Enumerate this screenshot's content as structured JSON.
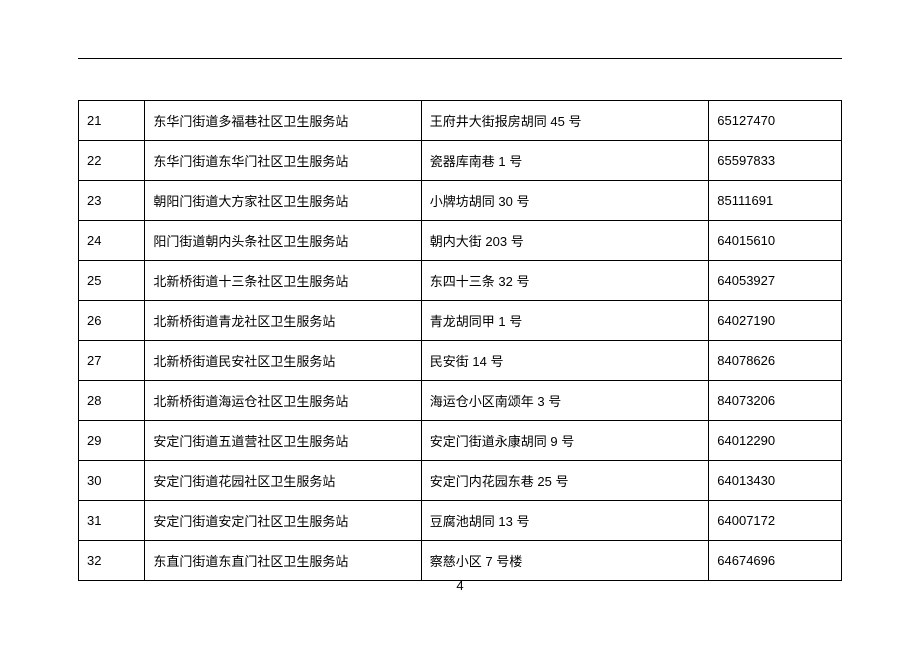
{
  "page_number": "4",
  "table": {
    "columns": [
      {
        "class": "col-num"
      },
      {
        "class": "col-name"
      },
      {
        "class": "col-addr"
      },
      {
        "class": "col-phone"
      }
    ],
    "rows": [
      [
        "21",
        "东华门街道多福巷社区卫生服务站",
        "王府井大街报房胡同 45 号",
        "65127470"
      ],
      [
        "22",
        "东华门街道东华门社区卫生服务站",
        "瓷器库南巷 1 号",
        "65597833"
      ],
      [
        "23",
        "朝阳门街道大方家社区卫生服务站",
        "小牌坊胡同 30 号",
        "85111691"
      ],
      [
        "24",
        "阳门街道朝内头条社区卫生服务站",
        "朝内大街 203 号",
        "64015610"
      ],
      [
        "25",
        "北新桥街道十三条社区卫生服务站",
        "东四十三条 32 号",
        "64053927"
      ],
      [
        "26",
        "北新桥街道青龙社区卫生服务站",
        "青龙胡同甲 1 号",
        "64027190"
      ],
      [
        "27",
        "北新桥街道民安社区卫生服务站",
        "民安街 14 号",
        "84078626"
      ],
      [
        "28",
        "北新桥街道海运仓社区卫生服务站",
        "海运仓小区南颂年 3 号",
        "84073206"
      ],
      [
        "29",
        "安定门街道五道营社区卫生服务站",
        "安定门街道永康胡同 9 号",
        "64012290"
      ],
      [
        "30",
        "安定门街道花园社区卫生服务站",
        "安定门内花园东巷 25 号",
        "64013430"
      ],
      [
        "31",
        "安定门街道安定门社区卫生服务站",
        "豆腐池胡同 13 号",
        "64007172"
      ],
      [
        "32",
        "东直门街道东直门社区卫生服务站",
        "察慈小区 7 号楼",
        "64674696"
      ]
    ]
  }
}
